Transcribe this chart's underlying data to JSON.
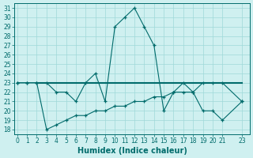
{
  "xlabel": "Humidex (Indice chaleur)",
  "x": [
    0,
    1,
    2,
    3,
    4,
    5,
    6,
    7,
    8,
    9,
    10,
    11,
    12,
    13,
    14,
    15,
    16,
    17,
    18,
    19,
    20,
    21,
    23
  ],
  "line1_y": [
    23,
    23,
    23,
    23,
    22,
    22,
    21,
    23,
    24,
    21,
    29,
    30,
    31,
    29,
    27,
    20,
    22,
    23,
    22,
    23,
    23,
    23,
    21
  ],
  "line2_y": [
    23,
    23,
    23,
    18,
    18.5,
    19,
    19.5,
    19.5,
    20,
    20,
    20.5,
    20.5,
    21,
    21,
    21.5,
    21.5,
    22,
    22,
    22,
    20,
    20,
    19,
    21
  ],
  "line3_x": [
    2,
    23
  ],
  "line3_y": [
    23,
    23
  ],
  "ylim_min": 17.5,
  "ylim_max": 31.5,
  "yticks": [
    18,
    19,
    20,
    21,
    22,
    23,
    24,
    25,
    26,
    27,
    28,
    29,
    30,
    31
  ],
  "xticks": [
    0,
    1,
    2,
    3,
    4,
    5,
    6,
    7,
    8,
    9,
    10,
    11,
    12,
    13,
    14,
    15,
    16,
    17,
    18,
    19,
    20,
    21,
    23
  ],
  "xlim_min": -0.3,
  "xlim_max": 23.8,
  "line_color": "#006b6b",
  "bg_color": "#cff0f0",
  "grid_color": "#9fd8d8",
  "tick_fontsize": 5.5,
  "xlabel_fontsize": 7
}
